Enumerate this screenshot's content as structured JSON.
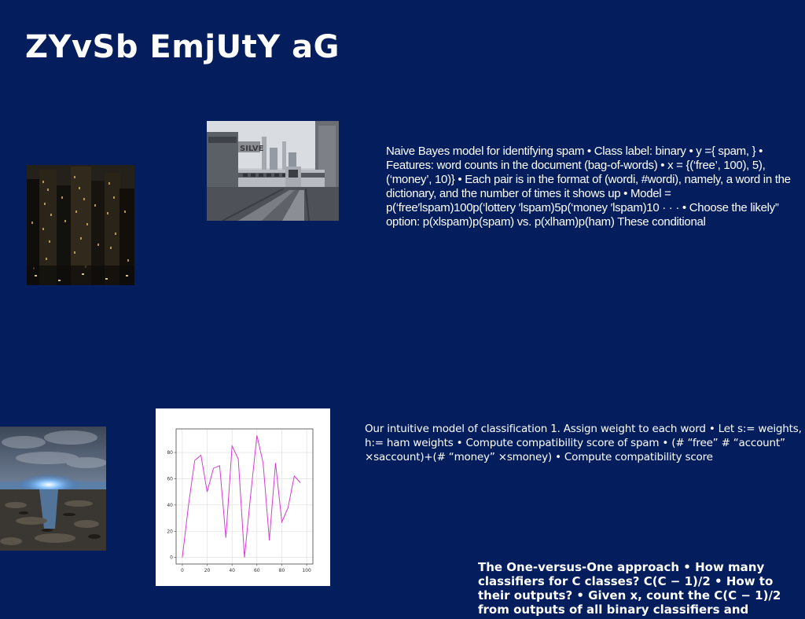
{
  "slide": {
    "title": "ZYvSb EmjUtY aG",
    "background_color": "#041d5c",
    "text_color": "#ffffff"
  },
  "images": {
    "city_night": "city-skyline-night-photo",
    "subway_train": "elevated-subway-train-photo",
    "beach_sunset": "beach-glowing-horizon-photo"
  },
  "paragraphs": {
    "naive_bayes": "Naive Bayes model for identifying spam • Class label: binary • y ={ spam, } • Features: word counts in the document (bag-of-words) • x = {(‘free’, 100), 5), (‘money’, 10)} • Each pair is in the format of (wordi, #wordi), namely, a word in the dictionary, and the number of times it shows up • Model = p(‘free′lspam)100p(‘lottery ′lspam)5p(‘money ′lspam)10 · · · • Choose the likely” option: p(xlspam)p(spam) vs. p(xlham)p(ham) These conditional",
    "intuitive_model": "Our intuitive model of classification 1. Assign weight to each word • Let s:= weights, h:= ham weights • Compute compatibility score of spam • (# “free” # “account” ×saccount)+(# “money” ×smoney) • Compute compatibility score",
    "one_vs_one": "The One-versus-One approach • How many classifiers for C classes? C(C − 1)/2 • How to their outputs? • Given x, count the C(C − 1)/2 from outputs of all binary classifiers and"
  },
  "chart_data": {
    "type": "line",
    "title": "",
    "xlabel": "",
    "ylabel": "",
    "x": [
      0,
      5,
      10,
      15,
      20,
      25,
      30,
      35,
      40,
      45,
      50,
      55,
      60,
      65,
      70,
      75,
      80,
      85,
      90,
      95,
      100
    ],
    "series": [
      {
        "values": [
          0,
          40,
          74,
          78,
          50,
          68,
          70,
          15,
          85,
          75,
          0,
          48,
          93,
          72,
          13,
          72,
          27,
          38,
          62,
          57,
          null
        ],
        "color": "#d63bd6"
      }
    ],
    "xlim": [
      -5,
      105
    ],
    "ylim": [
      -5,
      98
    ],
    "xticks": [
      0,
      20,
      40,
      60,
      80,
      100
    ],
    "yticks": [
      0,
      20,
      40,
      60,
      80
    ],
    "xtick_labels": [
      "0",
      "20",
      "40",
      "60",
      "80",
      "100"
    ],
    "ytick_labels": [
      "0",
      "20",
      "40",
      "60",
      "80"
    ],
    "grid": true
  }
}
